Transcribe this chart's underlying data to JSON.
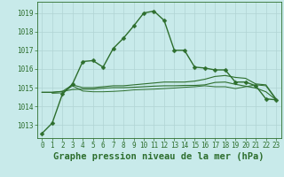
{
  "title": "Graphe pression niveau de la mer (hPa)",
  "background_color": "#c8eaea",
  "grid_color": "#b0d4d4",
  "line_color": "#2d6e2d",
  "x_ticks": [
    0,
    1,
    2,
    3,
    4,
    5,
    6,
    7,
    8,
    9,
    10,
    11,
    12,
    13,
    14,
    15,
    16,
    17,
    18,
    19,
    20,
    21,
    22,
    23
  ],
  "y_ticks": [
    1013,
    1014,
    1015,
    1016,
    1017,
    1018,
    1019
  ],
  "ylim": [
    1012.3,
    1019.6
  ],
  "xlim": [
    -0.5,
    23.5
  ],
  "series": [
    {
      "x": [
        0,
        1,
        2,
        3,
        4,
        5,
        6,
        7,
        8,
        9,
        10,
        11,
        12,
        13,
        14,
        15,
        16,
        17,
        18,
        19,
        20,
        21,
        22,
        23
      ],
      "y": [
        1012.55,
        1013.1,
        1014.65,
        1015.2,
        1016.4,
        1016.45,
        1016.1,
        1017.1,
        1017.65,
        1018.3,
        1019.0,
        1019.1,
        1018.6,
        1017.0,
        1017.0,
        1016.1,
        1016.05,
        1015.95,
        1015.95,
        1015.3,
        1015.3,
        1015.1,
        1014.4,
        1014.35
      ],
      "marker": "D",
      "marker_size": 2.5,
      "linewidth": 1.0
    },
    {
      "x": [
        0,
        1,
        2,
        3,
        4,
        5,
        6,
        7,
        8,
        9,
        10,
        11,
        12,
        13,
        14,
        15,
        16,
        17,
        18,
        19,
        20,
        21,
        22,
        23
      ],
      "y": [
        1014.75,
        1014.75,
        1014.8,
        1015.15,
        1015.0,
        1015.0,
        1015.05,
        1015.1,
        1015.1,
        1015.15,
        1015.2,
        1015.25,
        1015.3,
        1015.3,
        1015.3,
        1015.35,
        1015.45,
        1015.6,
        1015.65,
        1015.55,
        1015.5,
        1015.2,
        1015.15,
        1014.4
      ],
      "marker": null,
      "marker_size": 0,
      "linewidth": 0.8
    },
    {
      "x": [
        0,
        1,
        2,
        3,
        4,
        5,
        6,
        7,
        8,
        9,
        10,
        11,
        12,
        13,
        14,
        15,
        16,
        17,
        18,
        19,
        20,
        21,
        22,
        23
      ],
      "y": [
        1014.75,
        1014.75,
        1014.8,
        1014.9,
        1014.92,
        1014.92,
        1014.97,
        1015.0,
        1015.0,
        1015.02,
        1015.05,
        1015.08,
        1015.1,
        1015.1,
        1015.12,
        1015.12,
        1015.15,
        1015.28,
        1015.3,
        1015.18,
        1015.08,
        1014.98,
        1014.78,
        1014.35
      ],
      "marker": null,
      "marker_size": 0,
      "linewidth": 0.8
    },
    {
      "x": [
        1,
        2,
        3,
        4,
        5,
        6,
        7,
        8,
        9,
        10,
        11,
        12,
        13,
        14,
        15,
        16,
        17,
        18,
        19,
        20,
        21,
        22,
        23
      ],
      "y": [
        1014.7,
        1014.72,
        1015.1,
        1014.82,
        1014.78,
        1014.78,
        1014.8,
        1014.83,
        1014.88,
        1014.9,
        1014.92,
        1014.95,
        1014.98,
        1015.02,
        1015.05,
        1015.1,
        1015.05,
        1015.05,
        1014.95,
        1015.05,
        1015.15,
        1015.1,
        1014.35
      ],
      "marker": null,
      "marker_size": 0,
      "linewidth": 0.7
    }
  ],
  "title_fontsize": 7.5,
  "tick_fontsize": 5.5
}
